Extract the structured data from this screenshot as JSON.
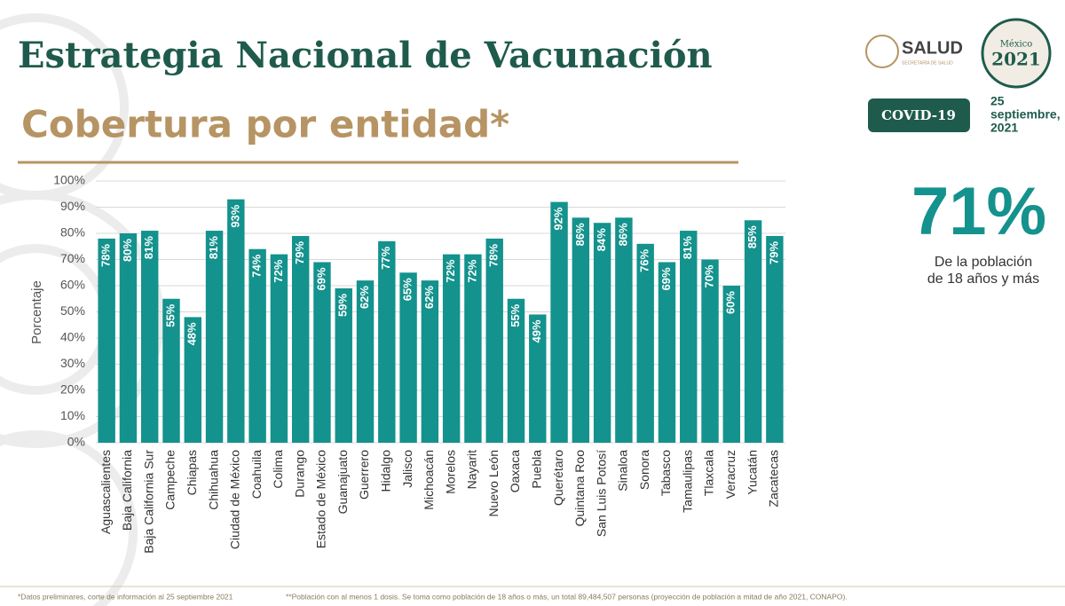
{
  "slide": {
    "title": "Estrategia Nacional de Vacunación",
    "subtitle": "Cobertura por entidad*",
    "logo_salud": "SALUD",
    "logo_salud_sub": "SECRETARÍA DE SALUD",
    "logo_emblem_top": "México",
    "logo_emblem_year": "2021",
    "badge": "COVID-19",
    "date_lines": [
      "25",
      "septiembre,",
      "2021"
    ],
    "headline": "71%",
    "headline_caption": [
      "De la población",
      "de 18 años y más"
    ],
    "footnote_1": "*Datos preliminares, corte de información al 25 septiembre 2021",
    "footnote_2": "**Población con al menos 1 dosis. Se toma como población de 18 años o más, un total 89,484,507 personas (proyección de población a mitad de año 2021, CONAPO)."
  },
  "chart_data": {
    "type": "bar",
    "y_label": "Porcentaje",
    "categories": [
      "Aguascalientes",
      "Baja California",
      "Baja California Sur",
      "Campeche",
      "Chiapas",
      "Chihuahua",
      "Ciudad de México",
      "Coahuila",
      "Colima",
      "Durango",
      "Estado de México",
      "Guanajuato",
      "Guerrero",
      "Hidalgo",
      "Jalisco",
      "Michoacán",
      "Morelos",
      "Nayarit",
      "Nuevo León",
      "Oaxaca",
      "Puebla",
      "Querétaro",
      "Quintana Roo",
      "San Luis Potosí",
      "Sinaloa",
      "Sonora",
      "Tabasco",
      "Tamaulipas",
      "Tlaxcala",
      "Veracruz",
      "Yucatán",
      "Zacatecas"
    ],
    "values": [
      78,
      80,
      81,
      55,
      48,
      81,
      93,
      74,
      72,
      79,
      69,
      59,
      62,
      77,
      65,
      62,
      72,
      72,
      78,
      55,
      49,
      92,
      86,
      84,
      86,
      76,
      69,
      81,
      70,
      60,
      85,
      79
    ],
    "value_labels": [
      "78%",
      "80%",
      "81%",
      "55%",
      "48%",
      "81%",
      "93%",
      "74%",
      "72%",
      "79%",
      "69%",
      "59%",
      "62%",
      "77%",
      "65%",
      "62%",
      "72%",
      "72%",
      "78%",
      "55%",
      "49%",
      "92%",
      "86%",
      "84%",
      "86%",
      "76%",
      "69%",
      "81%",
      "70%",
      "60%",
      "85%",
      "79%"
    ],
    "color": "#14928d",
    "ylim": [
      0,
      100
    ],
    "yticks": [
      {
        "value": 0,
        "label": "0%"
      },
      {
        "value": 10,
        "label": "10%"
      },
      {
        "value": 20,
        "label": "20%"
      },
      {
        "value": 30,
        "label": "30%"
      },
      {
        "value": 40,
        "label": "40%"
      },
      {
        "value": 50,
        "label": "50%"
      },
      {
        "value": 60,
        "label": "60%"
      },
      {
        "value": 70,
        "label": "70%"
      },
      {
        "value": 80,
        "label": "80%"
      },
      {
        "value": 90,
        "label": "90%"
      },
      {
        "value": 100,
        "label": "100%"
      }
    ],
    "grid": true
  }
}
